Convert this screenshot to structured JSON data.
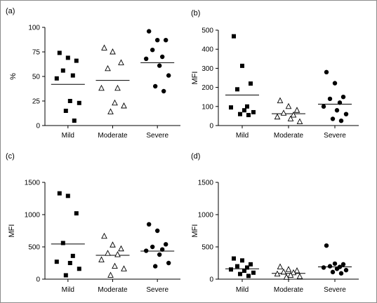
{
  "chart_data": [
    {
      "type": "scatter",
      "panel_label": "(a)",
      "ylabel": "%",
      "categories": [
        "Mild",
        "Moderate",
        "Severe"
      ],
      "ylim": [
        0,
        100
      ],
      "yticks": [
        "0",
        "25",
        "50",
        "75",
        "100"
      ],
      "grid": false,
      "series": [
        {
          "category": "Mild",
          "marker": "filled-square",
          "values": [
            74,
            69,
            66,
            56,
            51,
            48,
            25,
            23,
            15,
            5
          ],
          "median_line": 42
        },
        {
          "category": "Moderate",
          "marker": "open-triangle",
          "values": [
            79,
            75,
            64,
            58,
            38,
            38,
            23,
            20,
            14
          ],
          "median_line": 46
        },
        {
          "category": "Severe",
          "marker": "filled-circle",
          "values": [
            96,
            87,
            87,
            77,
            70,
            68,
            61,
            51,
            40,
            35
          ],
          "median_line": 64
        }
      ]
    },
    {
      "type": "scatter",
      "panel_label": "(b)",
      "ylabel": "MFI",
      "categories": [
        "Mild",
        "Moderate",
        "Severe"
      ],
      "ylim": [
        0,
        500
      ],
      "yticks": [
        "0",
        "100",
        "200",
        "300",
        "400",
        "500"
      ],
      "grid": false,
      "series": [
        {
          "category": "Mild",
          "marker": "filled-square",
          "values": [
            468,
            313,
            220,
            190,
            100,
            95,
            80,
            70,
            60,
            55
          ],
          "median_line": 160
        },
        {
          "category": "Moderate",
          "marker": "open-triangle",
          "values": [
            130,
            100,
            80,
            65,
            55,
            45,
            35,
            20
          ],
          "median_line": 62
        },
        {
          "category": "Severe",
          "marker": "filled-circle",
          "values": [
            280,
            222,
            150,
            140,
            120,
            100,
            80,
            60,
            35,
            25
          ],
          "median_line": 112
        }
      ]
    },
    {
      "type": "scatter",
      "panel_label": "(c)",
      "ylabel": "MFI",
      "categories": [
        "Mild",
        "Moderate",
        "Severe"
      ],
      "ylim": [
        0,
        1500
      ],
      "yticks": [
        "0",
        "500",
        "1000",
        "1500"
      ],
      "grid": false,
      "series": [
        {
          "category": "Mild",
          "marker": "filled-square",
          "values": [
            1330,
            1290,
            1020,
            560,
            360,
            270,
            250,
            160,
            60
          ],
          "median_line": 545
        },
        {
          "category": "Moderate",
          "marker": "open-triangle",
          "values": [
            665,
            530,
            470,
            400,
            380,
            300,
            200,
            160,
            60
          ],
          "median_line": 370
        },
        {
          "category": "Severe",
          "marker": "filled-circle",
          "values": [
            850,
            750,
            540,
            500,
            460,
            440,
            380,
            250,
            200
          ],
          "median_line": 435
        }
      ]
    },
    {
      "type": "scatter",
      "panel_label": "(d)",
      "ylabel": "MFI",
      "categories": [
        "Mild",
        "Moderate",
        "Severe"
      ],
      "ylim": [
        0,
        1500
      ],
      "yticks": [
        "0",
        "500",
        "1000",
        "1500"
      ],
      "grid": false,
      "series": [
        {
          "category": "Mild",
          "marker": "filled-square",
          "values": [
            320,
            290,
            230,
            200,
            180,
            150,
            130,
            100,
            80,
            50
          ],
          "median_line": 160
        },
        {
          "category": "Moderate",
          "marker": "open-triangle",
          "values": [
            190,
            150,
            130,
            110,
            100,
            80,
            60,
            40,
            30
          ],
          "median_line": 90
        },
        {
          "category": "Severe",
          "marker": "filled-circle",
          "values": [
            520,
            240,
            230,
            200,
            190,
            180,
            160,
            140,
            110,
            90
          ],
          "median_line": 190
        }
      ]
    }
  ]
}
